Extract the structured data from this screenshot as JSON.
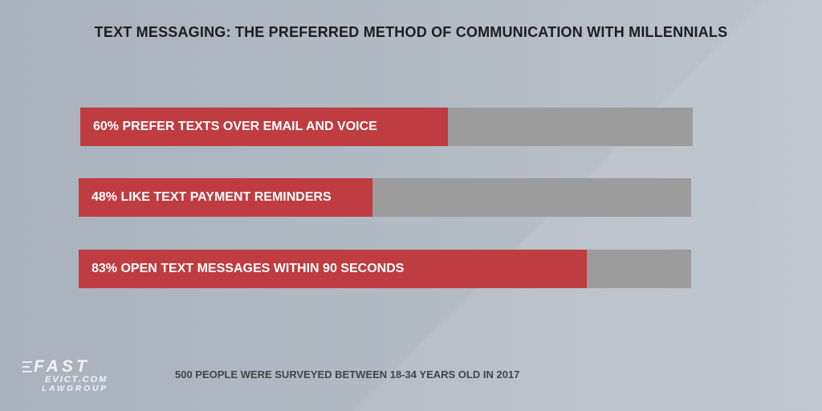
{
  "chart_data": {
    "type": "bar",
    "orientation": "horizontal",
    "title": "TEXT MESSAGING: THE PREFERRED METHOD OF COMMUNICATION WITH MILLENNIALS",
    "categories": [
      "60% PREFER TEXTS OVER EMAIL AND VOICE",
      "48% LIKE TEXT PAYMENT REMINDERS",
      "83% OPEN TEXT MESSAGES WITHIN 90 SECONDS"
    ],
    "values": [
      60,
      48,
      83
    ],
    "xlim": [
      0,
      100
    ],
    "unit": "%",
    "grid": false,
    "footnote": "500 PEOPLE WERE SURVEYED BETWEEN 18-34 YEARS OLD IN 2017"
  },
  "colors": {
    "bar_fill": "#bf3c41",
    "bar_track": "#9c9c9c",
    "title_text": "#1e1e1e"
  },
  "logo": {
    "line1": "FAST",
    "line2": "EVICT.COM",
    "line3": "LAWGROUP"
  }
}
